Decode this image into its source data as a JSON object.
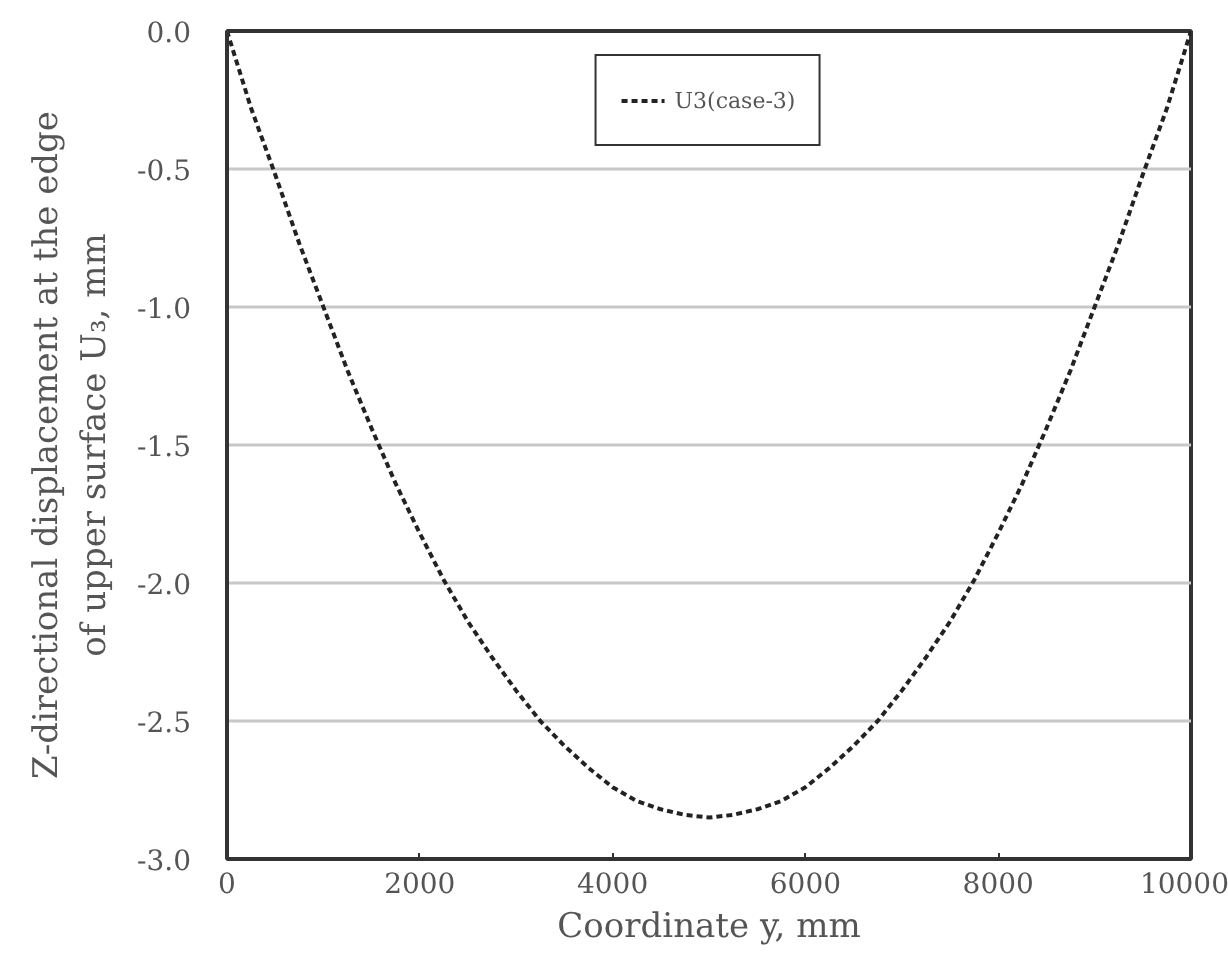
{
  "chart_data": {
    "type": "line",
    "xlabel": "Coordinate y, mm",
    "ylabel": "Z-directional displacement at the edge\nof upper surface U₃, mm",
    "x": [
      0,
      250,
      500,
      750,
      1000,
      1250,
      1500,
      1750,
      2000,
      2250,
      2500,
      2750,
      3000,
      3250,
      3500,
      3750,
      4000,
      4250,
      4500,
      4750,
      5000,
      5250,
      5500,
      5750,
      6000,
      6250,
      6500,
      6750,
      7000,
      7250,
      7500,
      7750,
      8000,
      8250,
      8500,
      8750,
      9000,
      9250,
      9500,
      9750,
      10000
    ],
    "series": [
      {
        "name": "U3(case-3)",
        "color": "#222222",
        "values": [
          0,
          -0.28,
          -0.52,
          -0.77,
          -1.0,
          -1.23,
          -1.44,
          -1.64,
          -1.82,
          -1.99,
          -2.14,
          -2.27,
          -2.39,
          -2.5,
          -2.59,
          -2.67,
          -2.74,
          -2.79,
          -2.82,
          -2.84,
          -2.85,
          -2.84,
          -2.82,
          -2.79,
          -2.74,
          -2.67,
          -2.59,
          -2.5,
          -2.39,
          -2.27,
          -2.14,
          -1.99,
          -1.82,
          -1.64,
          -1.44,
          -1.23,
          -1.0,
          -0.77,
          -0.52,
          -0.28,
          0
        ]
      }
    ],
    "xlim": [
      0,
      10000
    ],
    "ylim": [
      -3,
      0
    ],
    "xticks": [
      0,
      2000,
      4000,
      6000,
      8000,
      10000
    ],
    "yticks": [
      {
        "value": 0,
        "label": "0.0"
      },
      -0.5,
      {
        "value": -1,
        "label": "-1.0"
      },
      -1.5,
      {
        "value": -2,
        "label": "-2.0"
      },
      -2.5,
      {
        "value": -3,
        "label": "-3.0"
      }
    ],
    "grid": "y",
    "legend": "top",
    "line_style": "dashed"
  }
}
